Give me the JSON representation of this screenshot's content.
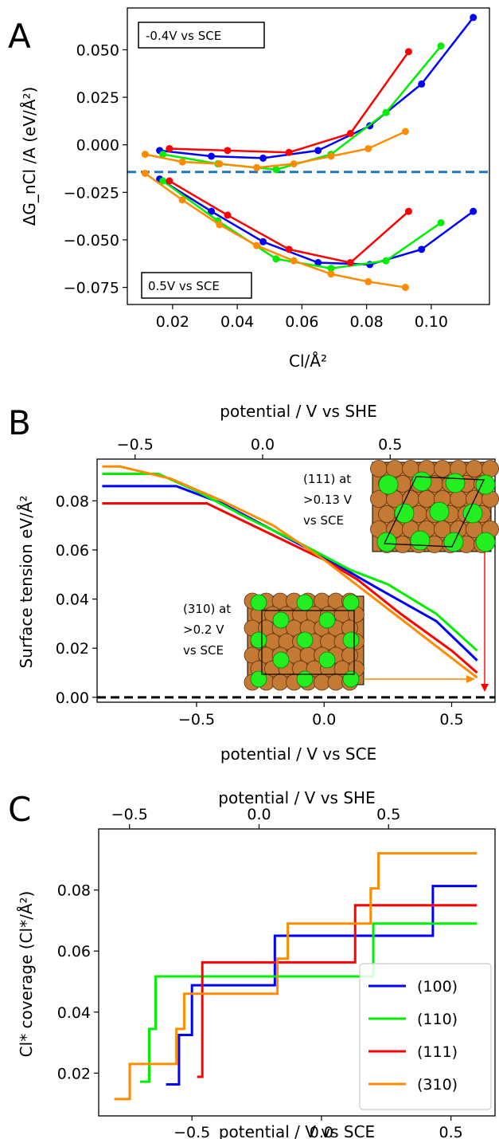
{
  "colors": {
    "(100)": "#0000ff",
    "(110)": "#00ee00",
    "(111)": "#ff0000",
    "(310)": "#ff8c00",
    "reference_line_A": "#1f77b4",
    "zero_line_B": "#000000",
    "copper": "#c47a35",
    "chlorine": "#22ee22"
  },
  "chart_data": [
    {
      "panel": "A",
      "type": "line",
      "panel_letter": "A",
      "xlabel": "Cl/Å²",
      "ylabel": "ΔG_nCl /A (eV/Å²)",
      "xlim": [
        0.006,
        0.118
      ],
      "ylim": [
        -0.084,
        0.072
      ],
      "xticks": [
        0.02,
        0.04,
        0.06,
        0.08,
        0.1
      ],
      "xticklabels": [
        "0.02",
        "0.04",
        "0.06",
        "0.08",
        "0.10"
      ],
      "yticks": [
        -0.075,
        -0.05,
        -0.025,
        0.0,
        0.025,
        0.05
      ],
      "yticklabels": [
        "−0.075",
        "−0.050",
        "−0.025",
        "0.000",
        "0.025",
        "0.050"
      ],
      "reference_line_y": -0.0143,
      "annotations": [
        "-0.4V vs SCE",
        "0.5V vs SCE"
      ],
      "series": [
        {
          "facet": "(100)",
          "condition": "-0.4V vs SCE",
          "x": [
            0.016,
            0.032,
            0.048,
            0.065,
            0.081,
            0.097,
            0.113
          ],
          "y": [
            -0.003,
            -0.006,
            -0.007,
            -0.003,
            0.01,
            0.032,
            0.067
          ]
        },
        {
          "facet": "(110)",
          "condition": "-0.4V vs SCE",
          "x": [
            0.017,
            0.034,
            0.052,
            0.069,
            0.086,
            0.103
          ],
          "y": [
            -0.005,
            -0.01,
            -0.013,
            -0.005,
            0.017,
            0.052
          ]
        },
        {
          "facet": "(111)",
          "condition": "-0.4V vs SCE",
          "x": [
            0.019,
            0.037,
            0.056,
            0.075,
            0.093
          ],
          "y": [
            -0.002,
            -0.003,
            -0.004,
            0.006,
            0.049
          ]
        },
        {
          "facet": "(310)",
          "condition": "-0.4V vs SCE",
          "x": [
            0.0115,
            0.023,
            0.0345,
            0.046,
            0.0575,
            0.069,
            0.0805,
            0.092
          ],
          "y": [
            -0.005,
            -0.009,
            -0.01,
            -0.012,
            -0.01,
            -0.006,
            -0.002,
            0.007
          ]
        },
        {
          "facet": "(100)",
          "condition": "0.5V vs SCE",
          "x": [
            0.016,
            0.032,
            0.048,
            0.065,
            0.081,
            0.097,
            0.113
          ],
          "y": [
            -0.018,
            -0.035,
            -0.051,
            -0.062,
            -0.063,
            -0.055,
            -0.035
          ]
        },
        {
          "facet": "(110)",
          "condition": "0.5V vs SCE",
          "x": [
            0.017,
            0.034,
            0.052,
            0.069,
            0.086,
            0.103
          ],
          "y": [
            -0.019,
            -0.04,
            -0.06,
            -0.065,
            -0.061,
            -0.041
          ]
        },
        {
          "facet": "(111)",
          "condition": "0.5V vs SCE",
          "x": [
            0.019,
            0.037,
            0.056,
            0.075,
            0.093
          ],
          "y": [
            -0.019,
            -0.037,
            -0.055,
            -0.062,
            -0.035
          ]
        },
        {
          "facet": "(310)",
          "condition": "0.5V vs SCE",
          "x": [
            0.0115,
            0.023,
            0.0345,
            0.046,
            0.0575,
            0.069,
            0.0805,
            0.092
          ],
          "y": [
            -0.015,
            -0.029,
            -0.042,
            -0.053,
            -0.061,
            -0.068,
            -0.072,
            -0.075
          ]
        }
      ]
    },
    {
      "panel": "B",
      "type": "line",
      "panel_letter": "B",
      "xlabel": "potential / V vs SCE",
      "secondary_xlabel": "potential / V vs SHE",
      "ylabel": "Surface tension eV/Å²",
      "xlim": [
        -0.89,
        0.67
      ],
      "ylim": [
        -0.002,
        0.097
      ],
      "xticks": [
        -0.5,
        0.0,
        0.5
      ],
      "xticklabels": [
        "−0.5",
        "0.0",
        "0.5"
      ],
      "secondary_xticks": [
        -0.5,
        0.0,
        0.5
      ],
      "secondary_xticklabels": [
        "−0.5",
        "0.0",
        "0.5"
      ],
      "secondary_offset_V": 0.241,
      "yticks": [
        0.0,
        0.02,
        0.04,
        0.06,
        0.08
      ],
      "yticklabels": [
        "0.00",
        "0.02",
        "0.04",
        "0.06",
        "0.08"
      ],
      "zero_line_y": 0.0,
      "inset_labels": {
        "inset_111": "(111) at >0.13 V vs SCE",
        "inset_310": "(310) at >0.2 V vs SCE"
      },
      "series": [
        {
          "facet": "(100)",
          "x": [
            -0.87,
            -0.58,
            -0.4,
            -0.2,
            0.0,
            0.2,
            0.44,
            0.6
          ],
          "y": [
            0.086,
            0.086,
            0.079,
            0.068,
            0.057,
            0.045,
            0.031,
            0.015
          ]
        },
        {
          "facet": "(110)",
          "x": [
            -0.87,
            -0.65,
            -0.5,
            -0.3,
            -0.1,
            0.1,
            0.25,
            0.44,
            0.6
          ],
          "y": [
            0.091,
            0.091,
            0.084,
            0.073,
            0.063,
            0.052,
            0.046,
            0.034,
            0.019
          ]
        },
        {
          "facet": "(111)",
          "x": [
            -0.87,
            -0.46,
            -0.3,
            0.0,
            0.13,
            0.3,
            0.5,
            0.6
          ],
          "y": [
            0.079,
            0.079,
            0.071,
            0.056,
            0.048,
            0.034,
            0.019,
            0.01
          ]
        },
        {
          "facet": "(310)",
          "x": [
            -0.87,
            -0.8,
            -0.6,
            -0.4,
            -0.2,
            0.0,
            0.2,
            0.4,
            0.6
          ],
          "y": [
            0.094,
            0.094,
            0.089,
            0.08,
            0.07,
            0.056,
            0.04,
            0.024,
            0.008
          ]
        }
      ]
    },
    {
      "panel": "C",
      "type": "line",
      "panel_letter": "C",
      "xlabel": "potential / V vs SCE",
      "secondary_xlabel": "potential / V vs SHE",
      "ylabel": "Cl* coverage (Cl*/Å²)",
      "xlim": [
        -0.86,
        0.67
      ],
      "ylim": [
        0.006,
        0.1
      ],
      "xticks": [
        -0.5,
        0.0,
        0.5
      ],
      "xticklabels": [
        "−0.5",
        "0.0",
        "0.5"
      ],
      "secondary_xticks": [
        -0.5,
        0.0,
        0.5
      ],
      "secondary_xticklabels": [
        "−0.5",
        "0.0",
        "0.5"
      ],
      "secondary_offset_V": 0.241,
      "yticks": [
        0.02,
        0.04,
        0.06,
        0.08
      ],
      "yticklabels": [
        "0.02",
        "0.04",
        "0.06",
        "0.08"
      ],
      "legend": [
        "(100)",
        "(110)",
        "(111)",
        "(310)"
      ],
      "legend_position": "bottom-right",
      "series": [
        {
          "facet": "(100)",
          "x": [
            -0.6,
            -0.55,
            -0.55,
            -0.5,
            -0.5,
            -0.18,
            -0.18,
            0.43,
            0.43,
            0.6
          ],
          "y": [
            0.0163,
            0.0163,
            0.0325,
            0.0325,
            0.0488,
            0.0488,
            0.065,
            0.065,
            0.0813,
            0.0813
          ]
        },
        {
          "facet": "(110)",
          "x": [
            -0.7,
            -0.665,
            -0.665,
            -0.64,
            -0.64,
            0.2,
            0.2,
            0.6
          ],
          "y": [
            0.0172,
            0.0172,
            0.0345,
            0.0345,
            0.0517,
            0.0517,
            0.069,
            0.069
          ]
        },
        {
          "facet": "(111)",
          "x": [
            -0.48,
            -0.46,
            -0.46,
            0.13,
            0.13,
            0.6
          ],
          "y": [
            0.0188,
            0.0188,
            0.0563,
            0.0563,
            0.075,
            0.075
          ]
        },
        {
          "facet": "(310)",
          "x": [
            -0.8,
            -0.74,
            -0.74,
            -0.56,
            -0.56,
            -0.53,
            -0.53,
            -0.17,
            -0.17,
            -0.13,
            -0.13,
            0.19,
            0.19,
            0.22,
            0.22,
            0.6
          ],
          "y": [
            0.0115,
            0.0115,
            0.023,
            0.023,
            0.0345,
            0.0345,
            0.046,
            0.046,
            0.0575,
            0.0575,
            0.069,
            0.069,
            0.0805,
            0.0805,
            0.092,
            0.092
          ]
        }
      ]
    }
  ]
}
